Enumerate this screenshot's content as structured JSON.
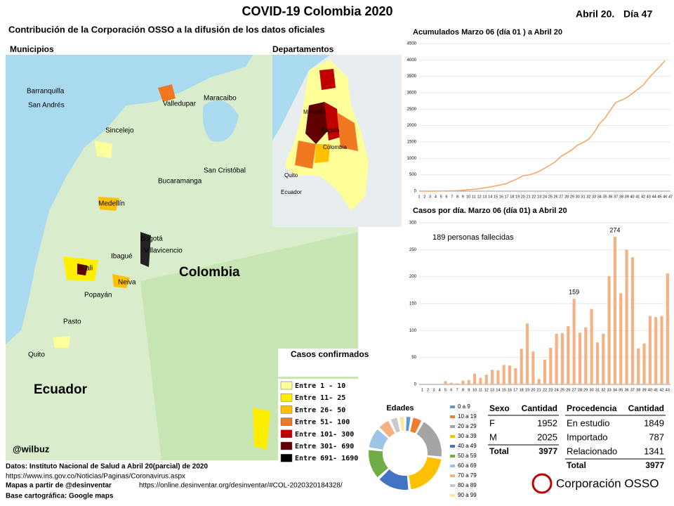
{
  "header": {
    "title": "COVID-19 Colombia 2020",
    "date": "Abril 20.",
    "day": "Día 47",
    "subtitle": "Contribución de la Corporación OSSO a la difusión de los datos oficiales"
  },
  "maps": {
    "municipios_title": "Municipios",
    "departamentos_title": "Departamentos",
    "credit": "@wilbuz",
    "places": [
      {
        "label": "Barranquilla"
      },
      {
        "label": "Maracaibo"
      },
      {
        "label": "San Andrés"
      },
      {
        "label": "Valledupar"
      },
      {
        "label": "Sincelejo"
      },
      {
        "label": "San Cristóbal"
      },
      {
        "label": "Bucaramanga"
      },
      {
        "label": "Medellín"
      },
      {
        "label": "Bogotá"
      },
      {
        "label": "Villavicencio"
      },
      {
        "label": "Ibagué"
      },
      {
        "label": "Cali"
      },
      {
        "label": "Neiva"
      },
      {
        "label": "Popayán"
      },
      {
        "label": "Pasto"
      },
      {
        "label": "Quito"
      },
      {
        "label": "Colombia"
      },
      {
        "label": "Ecuador"
      }
    ],
    "inset_places": [
      {
        "label": "Medellín"
      },
      {
        "label": "Bogotá"
      },
      {
        "label": "Colombia"
      },
      {
        "label": "Quito"
      },
      {
        "label": "Ecuador"
      }
    ],
    "legend_title": "Casos confirmados",
    "legend": [
      {
        "label": "Entre 1 - 10",
        "color": "#ffff99"
      },
      {
        "label": "Entre 11- 25",
        "color": "#ffee00"
      },
      {
        "label": "Entre 26- 50",
        "color": "#ffc000"
      },
      {
        "label": "Entre 51- 100",
        "color": "#f07820"
      },
      {
        "label": "Entre 101- 300",
        "color": "#c00000"
      },
      {
        "label": "Entre 301- 690",
        "color": "#600000"
      },
      {
        "label": "Entre 691- 1690",
        "color": "#000000"
      }
    ]
  },
  "chart_data": [
    {
      "type": "line",
      "title": "Acumulados  Marzo 06 (día 01 ) a Abril 20",
      "color": "#f4a460",
      "x": [
        1,
        2,
        3,
        4,
        5,
        6,
        7,
        8,
        9,
        10,
        11,
        12,
        13,
        14,
        15,
        16,
        17,
        18,
        19,
        20,
        21,
        22,
        23,
        24,
        25,
        26,
        27,
        28,
        29,
        30,
        31,
        32,
        33,
        34,
        35,
        36,
        37,
        38,
        39,
        40,
        41,
        42,
        43,
        44,
        45,
        46
      ],
      "values": [
        1,
        1,
        1,
        3,
        3,
        9,
        9,
        16,
        24,
        45,
        57,
        75,
        102,
        128,
        158,
        196,
        231,
        306,
        378,
        470,
        491,
        539,
        608,
        702,
        798,
        906,
        1065,
        1161,
        1267,
        1406,
        1485,
        1579,
        1780,
        2054,
        2223,
        2473,
        2709,
        2776,
        2852,
        2979,
        3105,
        3233,
        3439,
        3621,
        3792,
        3977
      ],
      "xlim": [
        1,
        47
      ],
      "xticks": [
        1,
        2,
        3,
        4,
        5,
        6,
        7,
        8,
        9,
        10,
        11,
        12,
        13,
        14,
        15,
        16,
        17,
        18,
        19,
        20,
        21,
        22,
        23,
        24,
        25,
        26,
        27,
        28,
        29,
        30,
        31,
        32,
        33,
        34,
        35,
        36,
        37,
        38,
        39,
        40,
        41,
        42,
        43,
        44,
        45,
        46,
        47
      ],
      "ylim": [
        0,
        4500
      ],
      "yticks": [
        0,
        500,
        1000,
        1500,
        2000,
        2500,
        3000,
        3500,
        4000,
        4500
      ],
      "grid": true
    },
    {
      "type": "bar",
      "title": "Casos por día. Marzo 06 (día 01) a Abril 20",
      "color": "#f4b183",
      "annotation": "189  personas fallecidas",
      "categories": [
        1,
        2,
        3,
        4,
        5,
        6,
        7,
        8,
        9,
        10,
        11,
        12,
        13,
        14,
        15,
        16,
        17,
        18,
        19,
        20,
        21,
        22,
        23,
        24,
        25,
        26,
        27,
        28,
        29,
        30,
        31,
        32,
        33,
        34,
        35,
        36,
        37,
        38,
        39,
        40,
        41,
        42,
        43
      ],
      "values": [
        0,
        0,
        1,
        0,
        6,
        3,
        2,
        7,
        8,
        20,
        12,
        18,
        27,
        26,
        36,
        35,
        30,
        66,
        113,
        61,
        10,
        46,
        68,
        94,
        95,
        108,
        159,
        96,
        106,
        140,
        78,
        94,
        201,
        274,
        169,
        250,
        236,
        67,
        76,
        127,
        125,
        127,
        206
      ],
      "labeled_indices": [
        26,
        33
      ],
      "ylim": [
        0,
        300
      ],
      "yticks": [
        0,
        50,
        100,
        150,
        200,
        250,
        300
      ],
      "grid": true
    },
    {
      "type": "pie",
      "title": "Edades",
      "donut": true,
      "categories": [
        "0 a 9",
        "10 a 19",
        "20 a 29",
        "30 a 39",
        "40 a 49",
        "50 a 59",
        "60 a 69",
        "70 a 79",
        "80 a 89",
        "90 a 99"
      ],
      "values": [
        3,
        5,
        19,
        21,
        15,
        14,
        10,
        6,
        4,
        3
      ],
      "colors": [
        "#5b9bd5",
        "#ed7d31",
        "#a5a5a5",
        "#ffc000",
        "#4472c4",
        "#70ad47",
        "#9dc3e6",
        "#f4b183",
        "#c9c9c9",
        "#ffe699"
      ]
    }
  ],
  "tables": {
    "sexo": {
      "header": [
        "Sexo",
        "Cantidad"
      ],
      "rows": [
        [
          "F",
          1952
        ],
        [
          "M",
          2025
        ],
        [
          "Total",
          3977
        ]
      ]
    },
    "procedencia": {
      "header": [
        "Procedencia",
        "Cantidad"
      ],
      "rows": [
        [
          "En estudio",
          1849
        ],
        [
          "Importado",
          787
        ],
        [
          "Relacionado",
          1341
        ],
        [
          "Total",
          3977
        ]
      ]
    }
  },
  "footer": [
    "Datos: Instituto Nacional de Salud a Abril 20(parcial) de 2020",
    "https://www.ins.gov.co/Noticias/Paginas/Coronavirus.aspx",
    "Mapas a partir de @desinventar",
    "https://online.desinventar.org/desinventar/#COL-2020320184328/",
    "Base cartográfica: Google  maps"
  ],
  "logo": "Corporación OSSO"
}
